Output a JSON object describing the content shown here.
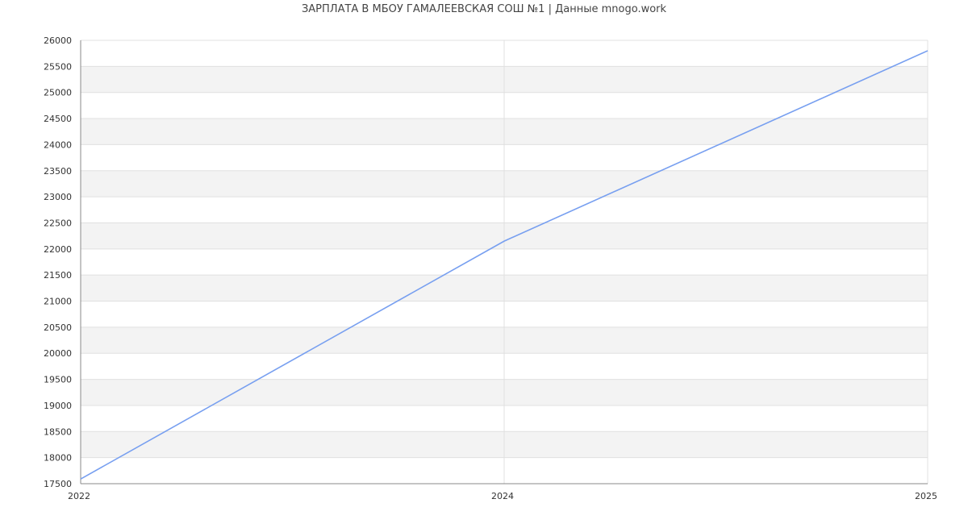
{
  "chart_data": {
    "type": "line",
    "title": "ЗАРПЛАТА В МБОУ ГАМАЛЕЕВСКАЯ СОШ №1 | Данные mnogo.work",
    "xlabel": "",
    "ylabel": "",
    "categories": [
      "2022",
      "2024",
      "2025"
    ],
    "series": [
      {
        "values": [
          17590,
          22150,
          25800
        ]
      }
    ],
    "ylim": [
      17500,
      26000
    ],
    "ytick_step": 500,
    "grid": true,
    "banded_background": true,
    "colors": {
      "line": "#779ff0",
      "band": "#f3f3f3",
      "grid": "#e0e0e0",
      "axis": "#888888"
    }
  }
}
